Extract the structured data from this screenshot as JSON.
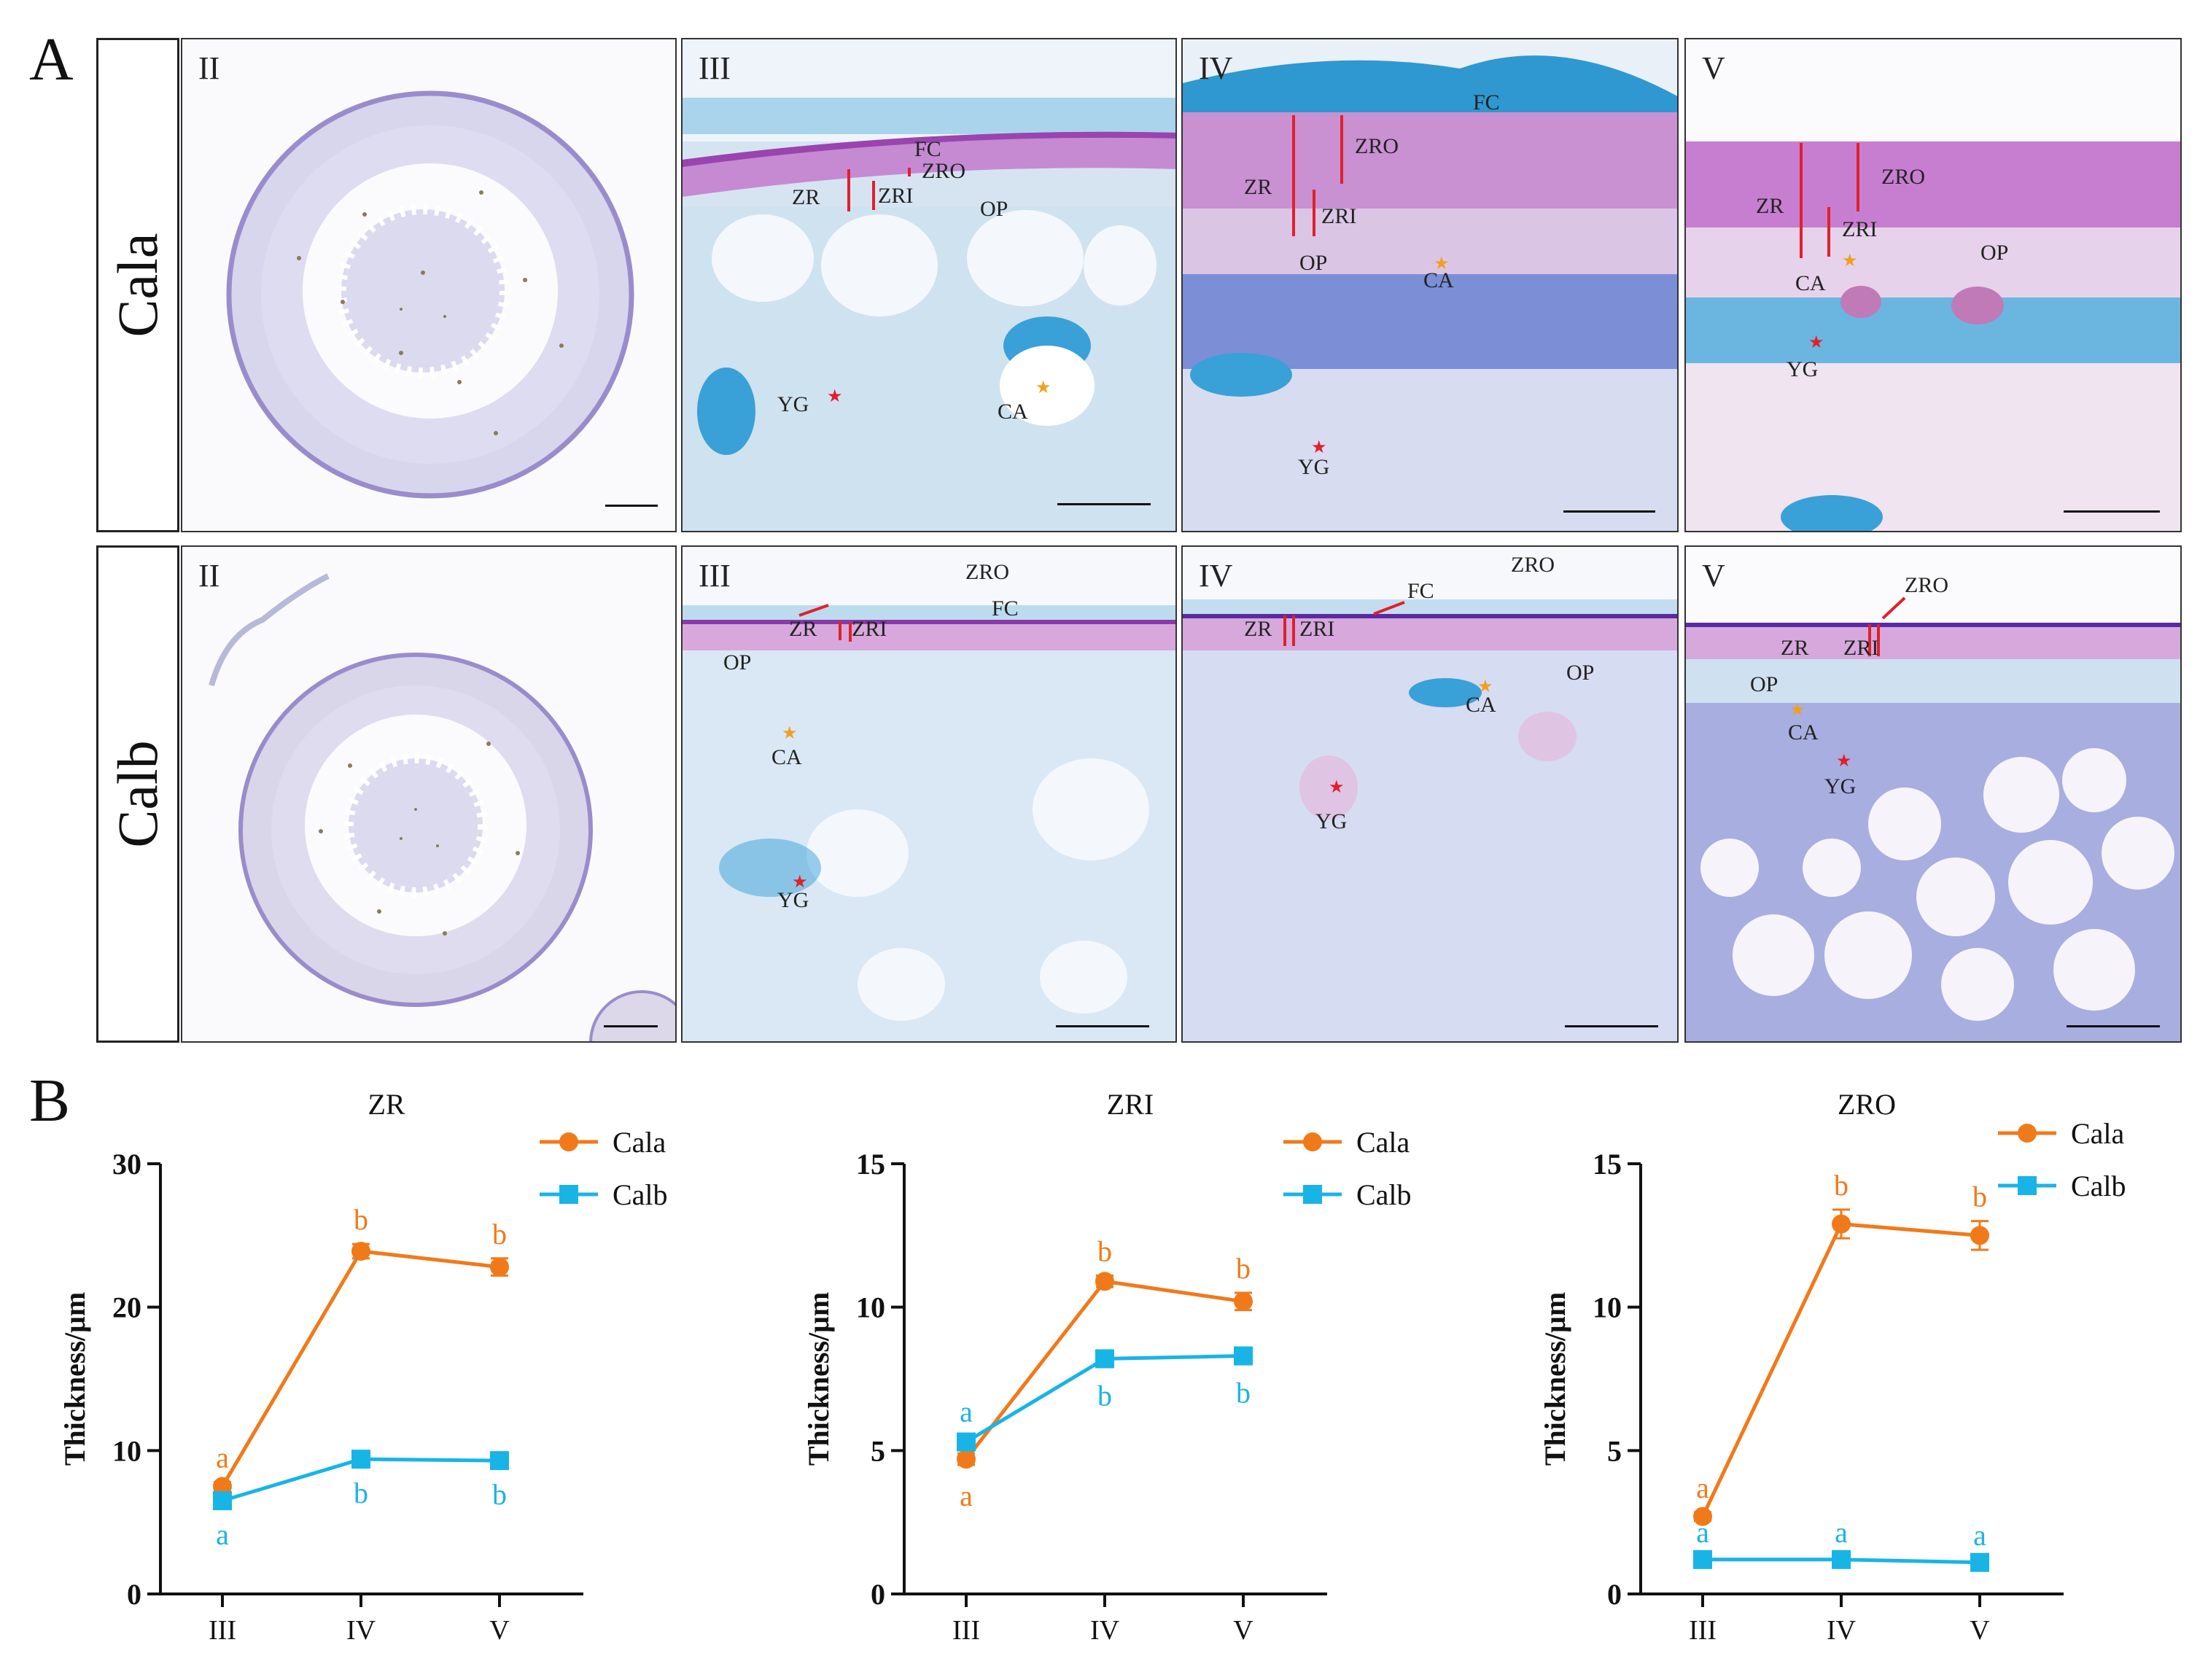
{
  "panel_a_label": "A",
  "panel_b_label": "B",
  "rows": [
    {
      "name": "Cala",
      "panels": [
        {
          "stage": "II",
          "labels": []
        },
        {
          "stage": "III",
          "labels": [
            "FC",
            "ZRO",
            "ZR",
            "ZRI",
            "OP",
            "YG",
            "CA"
          ]
        },
        {
          "stage": "IV",
          "labels": [
            "FC",
            "ZRO",
            "ZR",
            "ZRI",
            "OP",
            "CA",
            "YG"
          ]
        },
        {
          "stage": "V",
          "labels": [
            "ZRO",
            "ZR",
            "ZRI",
            "OP",
            "CA",
            "YG"
          ]
        }
      ]
    },
    {
      "name": "Calb",
      "panels": [
        {
          "stage": "II",
          "labels": []
        },
        {
          "stage": "III",
          "labels": [
            "ZRO",
            "FC",
            "ZR",
            "ZRI",
            "OP",
            "CA",
            "YG"
          ]
        },
        {
          "stage": "IV",
          "labels": [
            "ZRO",
            "FC",
            "ZR",
            "ZRI",
            "CA",
            "OP",
            "YG"
          ]
        },
        {
          "stage": "V",
          "labels": [
            "ZRO",
            "ZR",
            "ZRI",
            "OP",
            "CA",
            "YG"
          ]
        }
      ]
    }
  ],
  "colors": {
    "cala": "#f07a1a",
    "calb": "#19b4e6",
    "arrow": "#e0202a",
    "star_red": "#e0202a",
    "star_orange": "#f0a020"
  },
  "chart_data": [
    {
      "type": "line",
      "title": "ZR",
      "ylabel": "Thickness/μm",
      "categories": [
        "III",
        "IV",
        "V"
      ],
      "ylim": [
        0,
        30
      ],
      "yticks": [
        "0",
        "10",
        "20",
        "30"
      ],
      "series": [
        {
          "name": "Cala",
          "values": [
            7.5,
            23.9,
            22.8
          ],
          "errors": [
            0.3,
            0.5,
            0.6
          ],
          "letters": [
            "a",
            "b",
            "b"
          ],
          "letter_pos": [
            "above",
            "above",
            "above"
          ]
        },
        {
          "name": "Calb",
          "values": [
            6.5,
            9.4,
            9.3
          ],
          "errors": [
            0.2,
            0.2,
            0.2
          ],
          "letters": [
            "a",
            "b",
            "b"
          ],
          "letter_pos": [
            "below",
            "below",
            "below"
          ]
        }
      ]
    },
    {
      "type": "line",
      "title": "ZRI",
      "ylabel": "Thickness/μm",
      "categories": [
        "III",
        "IV",
        "V"
      ],
      "ylim": [
        0,
        15
      ],
      "yticks": [
        "0",
        "5",
        "10",
        "15"
      ],
      "series": [
        {
          "name": "Cala",
          "values": [
            4.7,
            10.9,
            10.2
          ],
          "errors": [
            0.2,
            0.2,
            0.3
          ],
          "letters": [
            "a",
            "b",
            "b"
          ],
          "letter_pos": [
            "below",
            "above",
            "above"
          ]
        },
        {
          "name": "Calb",
          "values": [
            5.3,
            8.2,
            8.3
          ],
          "errors": [
            0.2,
            0.2,
            0.2
          ],
          "letters": [
            "a",
            "b",
            "b"
          ],
          "letter_pos": [
            "above",
            "below",
            "below"
          ]
        }
      ]
    },
    {
      "type": "line",
      "title": "ZRO",
      "ylabel": "Thickness/μm",
      "categories": [
        "III",
        "IV",
        "V"
      ],
      "ylim": [
        0,
        15
      ],
      "yticks": [
        "0",
        "5",
        "10",
        "15"
      ],
      "series": [
        {
          "name": "Cala",
          "values": [
            2.7,
            12.9,
            12.5
          ],
          "errors": [
            0.15,
            0.5,
            0.5
          ],
          "letters": [
            "a",
            "b",
            "b"
          ],
          "letter_pos": [
            "above",
            "above",
            "above"
          ]
        },
        {
          "name": "Calb",
          "values": [
            1.2,
            1.2,
            1.1
          ],
          "errors": [
            0.1,
            0.1,
            0.1
          ],
          "letters": [
            "a",
            "a",
            "a"
          ],
          "letter_pos": [
            "above",
            "above",
            "above"
          ]
        }
      ]
    }
  ]
}
